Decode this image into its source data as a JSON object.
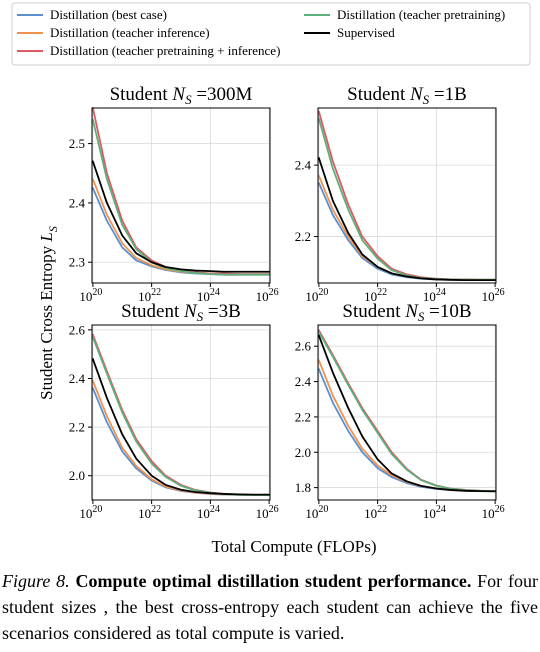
{
  "chart_data": {
    "type": "line",
    "xlabel": "Total Compute (FLOPs)",
    "ylabel": "Student Cross Entropy L_S",
    "ylabel_main": "Student Cross Entropy ",
    "ylabel_symbol": "L",
    "ylabel_sub": "S",
    "xscale": "log",
    "grid": true,
    "legend_position": "top",
    "x": [
      1e+20,
      3e+20,
      1e+21,
      3e+21,
      1e+22,
      3e+22,
      1e+23,
      3e+23,
      1e+24,
      3e+24,
      1e+25,
      3e+25,
      1e+26
    ],
    "x_ticks": [
      {
        "value": 1e+20,
        "base": "10",
        "exp": "20"
      },
      {
        "value": 1e+22,
        "base": "10",
        "exp": "22"
      },
      {
        "value": 1e+24,
        "base": "10",
        "exp": "24"
      },
      {
        "value": 1e+26,
        "base": "10",
        "exp": "26"
      }
    ],
    "series_info": [
      {
        "name": "Distillation (best case)",
        "color": "#5b8fd0"
      },
      {
        "name": "Distillation (teacher inference)",
        "color": "#f0924f"
      },
      {
        "name": "Distillation (teacher pretraining + inference)",
        "color": "#dc5a64"
      },
      {
        "name": "Distillation (teacher pretraining)",
        "color": "#5eb07a"
      },
      {
        "name": "Supervised",
        "color": "#000000"
      }
    ],
    "panels": [
      {
        "title_prefix": "Student ",
        "title_sym": "N",
        "title_sub": "S",
        "title_suffix": " =300M",
        "ylim": [
          2.265,
          2.56
        ],
        "yticks": [
          2.3,
          2.4,
          2.5
        ],
        "ytick_labels": [
          "2.3",
          "2.4",
          "2.5"
        ],
        "series": [
          {
            "name": "Distillation (best case)",
            "values": [
              2.425,
              2.37,
              2.325,
              2.303,
              2.293,
              2.287,
              2.283,
              2.281,
              2.28,
              2.279,
              2.279,
              2.279,
              2.279
            ]
          },
          {
            "name": "Distillation (teacher inference)",
            "values": [
              2.44,
              2.38,
              2.332,
              2.307,
              2.295,
              2.288,
              2.284,
              2.282,
              2.281,
              2.28,
              2.28,
              2.28,
              2.28
            ]
          },
          {
            "name": "Distillation (teacher pretraining + inference)",
            "values": [
              2.56,
              2.45,
              2.37,
              2.325,
              2.303,
              2.292,
              2.286,
              2.283,
              2.281,
              2.281,
              2.28,
              2.28,
              2.28
            ]
          },
          {
            "name": "Distillation (teacher pretraining)",
            "values": [
              2.54,
              2.44,
              2.363,
              2.322,
              2.3,
              2.29,
              2.285,
              2.282,
              2.28,
              2.279,
              2.279,
              2.279,
              2.279
            ]
          },
          {
            "name": "Supervised",
            "values": [
              2.47,
              2.4,
              2.345,
              2.315,
              2.3,
              2.292,
              2.288,
              2.286,
              2.285,
              2.284,
              2.284,
              2.284,
              2.284
            ]
          }
        ]
      },
      {
        "title_prefix": "Student ",
        "title_sym": "N",
        "title_sub": "S",
        "title_suffix": " =1B",
        "ylim": [
          2.07,
          2.56
        ],
        "yticks": [
          2.2,
          2.4
        ],
        "ytick_labels": [
          "2.2",
          "2.4"
        ],
        "series": [
          {
            "name": "Distillation (best case)",
            "values": [
              2.35,
              2.26,
              2.19,
              2.14,
              2.11,
              2.094,
              2.086,
              2.082,
              2.08,
              2.079,
              2.079,
              2.079,
              2.079
            ]
          },
          {
            "name": "Distillation (teacher inference)",
            "values": [
              2.37,
              2.275,
              2.2,
              2.145,
              2.115,
              2.097,
              2.088,
              2.083,
              2.081,
              2.08,
              2.079,
              2.079,
              2.079
            ]
          },
          {
            "name": "Distillation (teacher pretraining + inference)",
            "values": [
              2.55,
              2.41,
              2.29,
              2.2,
              2.145,
              2.11,
              2.094,
              2.086,
              2.082,
              2.08,
              2.08,
              2.079,
              2.079
            ]
          },
          {
            "name": "Distillation (teacher pretraining)",
            "values": [
              2.53,
              2.39,
              2.275,
              2.19,
              2.138,
              2.106,
              2.091,
              2.084,
              2.081,
              2.08,
              2.079,
              2.079,
              2.079
            ]
          },
          {
            "name": "Supervised",
            "values": [
              2.42,
              2.3,
              2.21,
              2.15,
              2.115,
              2.097,
              2.088,
              2.083,
              2.08,
              2.079,
              2.078,
              2.078,
              2.078
            ]
          }
        ]
      },
      {
        "title_prefix": "Student ",
        "title_sym": "N",
        "title_sub": "S",
        "title_suffix": " =3B",
        "ylim": [
          1.9,
          2.62
        ],
        "yticks": [
          2.0,
          2.2,
          2.4,
          2.6
        ],
        "ytick_labels": [
          "2.0",
          "2.2",
          "2.4",
          "2.6"
        ],
        "series": [
          {
            "name": "Distillation (best case)",
            "values": [
              2.36,
              2.22,
              2.1,
              2.03,
              1.98,
              1.952,
              1.937,
              1.93,
              1.925,
              1.922,
              1.921,
              1.92,
              1.92
            ]
          },
          {
            "name": "Distillation (teacher inference)",
            "values": [
              2.39,
              2.245,
              2.115,
              2.04,
              1.985,
              1.955,
              1.939,
              1.931,
              1.926,
              1.923,
              1.921,
              1.92,
              1.92
            ]
          },
          {
            "name": "Distillation (teacher pretraining + inference)",
            "values": [
              2.58,
              2.43,
              2.27,
              2.15,
              2.06,
              2.0,
              1.962,
              1.942,
              1.931,
              1.925,
              1.922,
              1.921,
              1.92
            ]
          },
          {
            "name": "Distillation (teacher pretraining)",
            "values": [
              2.57,
              2.42,
              2.26,
              2.14,
              2.05,
              1.995,
              1.958,
              1.94,
              1.93,
              1.924,
              1.921,
              1.92,
              1.92
            ]
          },
          {
            "name": "Supervised",
            "values": [
              2.48,
              2.32,
              2.17,
              2.07,
              2.0,
              1.962,
              1.942,
              1.933,
              1.928,
              1.925,
              1.923,
              1.922,
              1.922
            ]
          }
        ]
      },
      {
        "title_prefix": "Student ",
        "title_sym": "N",
        "title_sub": "S",
        "title_suffix": " =10B",
        "ylim": [
          1.73,
          2.72
        ],
        "yticks": [
          1.8,
          2.0,
          2.2,
          2.4,
          2.6
        ],
        "ytick_labels": [
          "1.8",
          "2.0",
          "2.2",
          "2.4",
          "2.6"
        ],
        "series": [
          {
            "name": "Distillation (best case)",
            "values": [
              2.47,
              2.28,
              2.12,
              2.0,
              1.91,
              1.86,
              1.825,
              1.805,
              1.792,
              1.786,
              1.782,
              1.78,
              1.78
            ]
          },
          {
            "name": "Distillation (teacher inference)",
            "values": [
              2.52,
              2.32,
              2.15,
              2.02,
              1.925,
              1.87,
              1.832,
              1.809,
              1.795,
              1.787,
              1.783,
              1.781,
              1.78
            ]
          },
          {
            "name": "Distillation (teacher pretraining + inference)",
            "values": [
              2.69,
              2.55,
              2.39,
              2.25,
              2.12,
              2.0,
              1.905,
              1.845,
              1.812,
              1.795,
              1.787,
              1.783,
              1.781
            ]
          },
          {
            "name": "Distillation (teacher pretraining)",
            "values": [
              2.68,
              2.54,
              2.38,
              2.24,
              2.11,
              1.99,
              1.9,
              1.842,
              1.81,
              1.794,
              1.786,
              1.782,
              1.781
            ]
          },
          {
            "name": "Supervised",
            "values": [
              2.66,
              2.45,
              2.25,
              2.09,
              1.96,
              1.88,
              1.835,
              1.81,
              1.795,
              1.787,
              1.782,
              1.78,
              1.779
            ]
          }
        ]
      }
    ]
  },
  "caption": {
    "label": "Figure 8.",
    "title": "Compute optimal distillation student performance.",
    "body": "For four student sizes , the best cross-entropy each student can achieve the five scenarios considered as total compute is varied."
  }
}
